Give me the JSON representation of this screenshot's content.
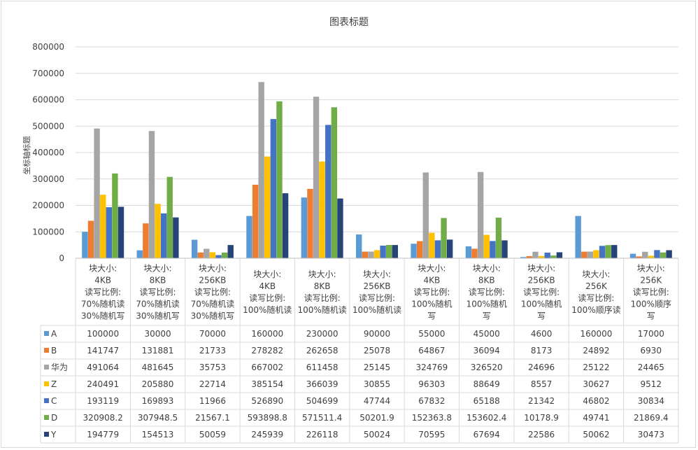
{
  "chart_data": {
    "type": "bar",
    "title": "图表标题",
    "ylabel": "坐标轴标题",
    "ylim": [
      0,
      800000
    ],
    "yticks": [
      0,
      100000,
      200000,
      300000,
      400000,
      500000,
      600000,
      700000,
      800000
    ],
    "grid": true,
    "legend": "data-table",
    "categories": [
      [
        "块大小:",
        "4KB",
        "读写比例:",
        "70%随机读",
        "30%随机写"
      ],
      [
        "块大小:",
        "8KB",
        "读写比例:",
        "70%随机读",
        "30%随机写"
      ],
      [
        "块大小:",
        "256KB",
        "读写比例:",
        "70%随机读",
        "30%随机写"
      ],
      [
        "块大小:",
        "4KB",
        "读写比例:",
        "100%随机读"
      ],
      [
        "块大小:",
        "8KB",
        "读写比例:",
        "100%随机读"
      ],
      [
        "块大小:",
        "256KB",
        "读写比例:",
        "100%随机读"
      ],
      [
        "块大小:",
        "4KB",
        "读写比例:",
        "100%随机",
        "写"
      ],
      [
        "块大小:",
        "8KB",
        "读写比例:",
        "100%随机",
        "写"
      ],
      [
        "块大小:",
        "256KB",
        "读写比例:",
        "100%随机",
        "写"
      ],
      [
        "块大小:",
        "256K",
        "读写比例:",
        "100%顺序读"
      ],
      [
        "块大小:",
        "256K",
        "读写比例:",
        "100%顺序",
        "写"
      ]
    ],
    "series": [
      {
        "name": "A",
        "color": "#5b9bd5",
        "values": [
          100000,
          30000,
          70000,
          160000,
          230000,
          90000,
          55000,
          45000,
          4600,
          160000,
          17000
        ]
      },
      {
        "name": "B",
        "color": "#ed7d31",
        "values": [
          141747,
          131881,
          21733,
          278282,
          262658,
          25078,
          64867,
          36094,
          8173,
          24892,
          6930
        ]
      },
      {
        "name": "华为",
        "color": "#a5a5a5",
        "values": [
          491064,
          481645,
          35753,
          667002,
          611458,
          25145,
          324769,
          326520,
          24696,
          25122,
          24465
        ]
      },
      {
        "name": "Z",
        "color": "#ffc000",
        "values": [
          240491,
          205880,
          22714,
          385154,
          366039,
          30855,
          96303,
          88649,
          8557,
          30627,
          9512
        ]
      },
      {
        "name": "C",
        "color": "#4472c4",
        "values": [
          193119,
          169893,
          11966,
          526890,
          504699,
          47744,
          67832,
          65188,
          21342,
          46802,
          30834
        ]
      },
      {
        "name": "D",
        "color": "#70ad47",
        "values": [
          320908.2,
          307948.5,
          21567.1,
          593898.8,
          571511.4,
          50201.9,
          152363.8,
          153602.4,
          10178.9,
          49741,
          21869.4
        ]
      },
      {
        "name": "Y",
        "color": "#264478",
        "values": [
          194779,
          154513,
          50059,
          245939,
          226118,
          50024,
          70595,
          67694,
          22586,
          50062,
          30473
        ]
      }
    ]
  }
}
